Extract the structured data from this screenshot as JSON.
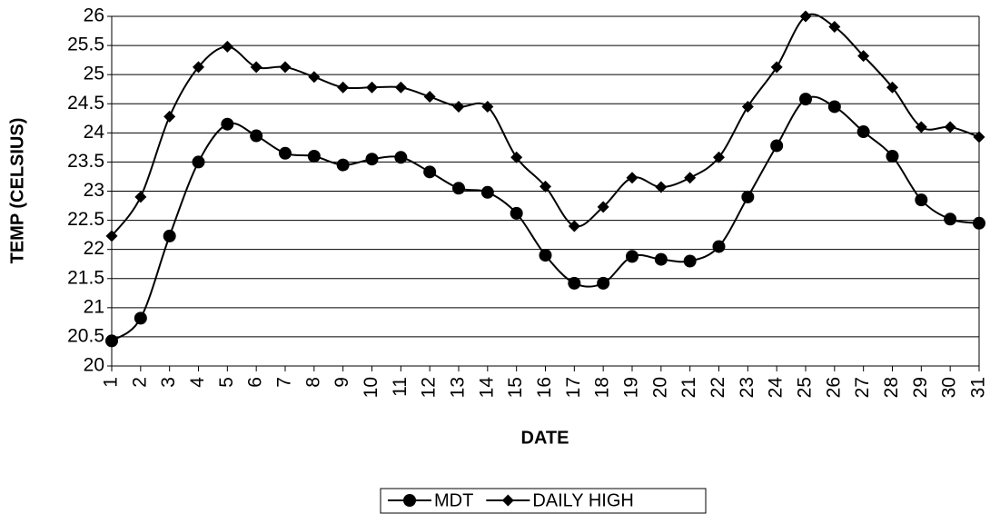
{
  "chart_data": {
    "type": "line",
    "x_label": "DATE",
    "y_label": "TEMP (CELSIUS)",
    "x": [
      1,
      2,
      3,
      4,
      5,
      6,
      7,
      8,
      9,
      10,
      11,
      12,
      13,
      14,
      15,
      16,
      17,
      18,
      19,
      20,
      21,
      22,
      23,
      24,
      25,
      26,
      27,
      28,
      29,
      30,
      31
    ],
    "xlim": [
      1,
      31
    ],
    "ylim": [
      20,
      26
    ],
    "yticks": [
      20,
      20.5,
      21,
      21.5,
      22,
      22.5,
      23,
      23.5,
      24,
      24.5,
      25,
      25.5,
      26
    ],
    "grid": true,
    "series": [
      {
        "name": "MDT",
        "color": "#000000",
        "marker": "circle",
        "values": [
          20.43,
          20.82,
          22.23,
          23.5,
          24.15,
          23.95,
          23.65,
          23.6,
          23.45,
          23.55,
          23.58,
          23.33,
          23.05,
          22.98,
          22.62,
          21.9,
          21.42,
          21.42,
          21.88,
          21.83,
          21.8,
          22.05,
          22.9,
          23.78,
          24.58,
          24.45,
          24.02,
          23.6,
          22.85,
          22.52,
          22.45
        ]
      },
      {
        "name": "DAILY HIGH",
        "color": "#000000",
        "marker": "diamond",
        "values": [
          22.23,
          22.9,
          24.28,
          25.13,
          25.48,
          25.13,
          25.13,
          24.96,
          24.78,
          24.78,
          24.78,
          24.62,
          24.45,
          24.45,
          23.58,
          23.08,
          22.4,
          22.73,
          23.23,
          23.07,
          23.23,
          23.58,
          24.45,
          25.13,
          26.0,
          25.82,
          25.32,
          24.78,
          24.1,
          24.1,
          23.93
        ]
      }
    ]
  }
}
